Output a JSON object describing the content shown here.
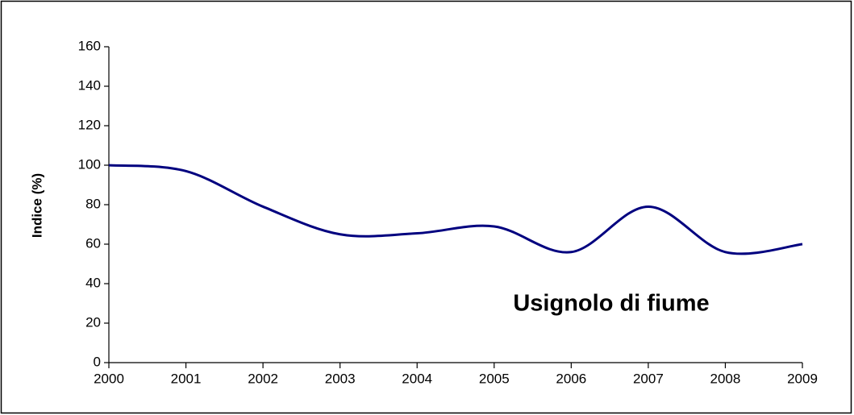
{
  "chart_data": {
    "type": "line",
    "y_label": "Indice (%)",
    "annotation": "Usignolo di fiume",
    "x": [
      2000,
      2001,
      2002,
      2003,
      2004,
      2005,
      2006,
      2007,
      2008,
      2009
    ],
    "series": [
      {
        "name": "Usignolo di fiume",
        "color": "#00007f",
        "values": [
          100,
          97,
          79,
          65,
          65.5,
          69,
          56,
          79,
          56,
          60
        ]
      }
    ],
    "xlim": [
      2000,
      2009
    ],
    "xticks": [
      2000,
      2001,
      2002,
      2003,
      2004,
      2005,
      2006,
      2007,
      2008,
      2009
    ],
    "ylim": [
      0,
      160
    ],
    "yticks": [
      0,
      20,
      40,
      60,
      80,
      100,
      120,
      140,
      160
    ],
    "grid": false
  }
}
